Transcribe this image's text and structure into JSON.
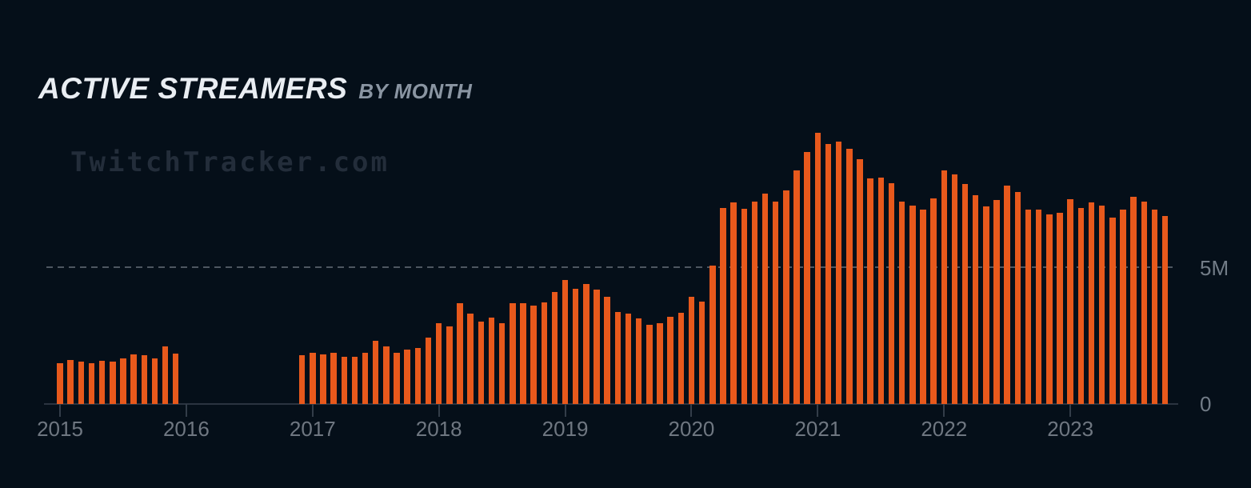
{
  "page": {
    "title": "ACTIVE STREAMERS",
    "subtitle": "BY MONTH",
    "watermark": "TwitchTracker.com",
    "background_color": "#050F19"
  },
  "chart_data": {
    "type": "bar",
    "title": "ACTIVE STREAMERS",
    "subtitle": "BY MONTH",
    "xlabel": "",
    "ylabel": "",
    "unit": "millions of active streamers per month",
    "bar_color": "#E8591C",
    "ylim_m": [
      0,
      10.5
    ],
    "grid": "single horizontal dashed gridline at 5M",
    "legend": "none",
    "data_gap": "no bars from 2016-01 through 2016-11",
    "y_ticks": [
      {
        "label": "5M",
        "value_m": 5
      },
      {
        "label": "0",
        "value_m": 0
      }
    ],
    "x_ticks": [
      "2015",
      "2016",
      "2017",
      "2018",
      "2019",
      "2020",
      "2021",
      "2022",
      "2023"
    ],
    "points": [
      {
        "d": "2015-01",
        "v": 1.51
      },
      {
        "d": "2015-02",
        "v": 1.63
      },
      {
        "d": "2015-03",
        "v": 1.57
      },
      {
        "d": "2015-04",
        "v": 1.5
      },
      {
        "d": "2015-05",
        "v": 1.6
      },
      {
        "d": "2015-06",
        "v": 1.57
      },
      {
        "d": "2015-07",
        "v": 1.69
      },
      {
        "d": "2015-08",
        "v": 1.81
      },
      {
        "d": "2015-09",
        "v": 1.8
      },
      {
        "d": "2015-10",
        "v": 1.69
      },
      {
        "d": "2015-11",
        "v": 2.11
      },
      {
        "d": "2015-12",
        "v": 1.86
      },
      {
        "d": "2016-12",
        "v": 1.8
      },
      {
        "d": "2017-01",
        "v": 1.87
      },
      {
        "d": "2017-02",
        "v": 1.81
      },
      {
        "d": "2017-03",
        "v": 1.87
      },
      {
        "d": "2017-04",
        "v": 1.74
      },
      {
        "d": "2017-05",
        "v": 1.74
      },
      {
        "d": "2017-06",
        "v": 1.87
      },
      {
        "d": "2017-07",
        "v": 2.33
      },
      {
        "d": "2017-08",
        "v": 2.11
      },
      {
        "d": "2017-09",
        "v": 1.87
      },
      {
        "d": "2017-10",
        "v": 1.99
      },
      {
        "d": "2017-11",
        "v": 2.05
      },
      {
        "d": "2017-12",
        "v": 2.45
      },
      {
        "d": "2018-01",
        "v": 2.97
      },
      {
        "d": "2018-02",
        "v": 2.86
      },
      {
        "d": "2018-03",
        "v": 3.7
      },
      {
        "d": "2018-04",
        "v": 3.33
      },
      {
        "d": "2018-05",
        "v": 3.04
      },
      {
        "d": "2018-06",
        "v": 3.17
      },
      {
        "d": "2018-07",
        "v": 2.98
      },
      {
        "d": "2018-08",
        "v": 3.7
      },
      {
        "d": "2018-09",
        "v": 3.71
      },
      {
        "d": "2018-10",
        "v": 3.63
      },
      {
        "d": "2018-11",
        "v": 3.74
      },
      {
        "d": "2018-12",
        "v": 4.12
      },
      {
        "d": "2019-01",
        "v": 4.55
      },
      {
        "d": "2019-02",
        "v": 4.24
      },
      {
        "d": "2019-03",
        "v": 4.42
      },
      {
        "d": "2019-04",
        "v": 4.2
      },
      {
        "d": "2019-05",
        "v": 3.94
      },
      {
        "d": "2019-06",
        "v": 3.38
      },
      {
        "d": "2019-07",
        "v": 3.31
      },
      {
        "d": "2019-08",
        "v": 3.14
      },
      {
        "d": "2019-09",
        "v": 2.91
      },
      {
        "d": "2019-10",
        "v": 2.97
      },
      {
        "d": "2019-11",
        "v": 3.21
      },
      {
        "d": "2019-12",
        "v": 3.35
      },
      {
        "d": "2020-01",
        "v": 3.95
      },
      {
        "d": "2020-02",
        "v": 3.76
      },
      {
        "d": "2020-03",
        "v": 5.1
      },
      {
        "d": "2020-04",
        "v": 7.21
      },
      {
        "d": "2020-05",
        "v": 7.4
      },
      {
        "d": "2020-06",
        "v": 7.17
      },
      {
        "d": "2020-07",
        "v": 7.45
      },
      {
        "d": "2020-08",
        "v": 7.74
      },
      {
        "d": "2020-09",
        "v": 7.45
      },
      {
        "d": "2020-10",
        "v": 7.84
      },
      {
        "d": "2020-11",
        "v": 8.58
      },
      {
        "d": "2020-12",
        "v": 9.26
      },
      {
        "d": "2021-01",
        "v": 9.98
      },
      {
        "d": "2021-02",
        "v": 9.56
      },
      {
        "d": "2021-03",
        "v": 9.65
      },
      {
        "d": "2021-04",
        "v": 9.37
      },
      {
        "d": "2021-05",
        "v": 9.01
      },
      {
        "d": "2021-06",
        "v": 8.28
      },
      {
        "d": "2021-07",
        "v": 8.33
      },
      {
        "d": "2021-08",
        "v": 8.11
      },
      {
        "d": "2021-09",
        "v": 7.45
      },
      {
        "d": "2021-10",
        "v": 7.29
      },
      {
        "d": "2021-11",
        "v": 7.14
      },
      {
        "d": "2021-12",
        "v": 7.57
      },
      {
        "d": "2022-01",
        "v": 8.58
      },
      {
        "d": "2022-02",
        "v": 8.43
      },
      {
        "d": "2022-03",
        "v": 8.09
      },
      {
        "d": "2022-04",
        "v": 7.68
      },
      {
        "d": "2022-05",
        "v": 7.27
      },
      {
        "d": "2022-06",
        "v": 7.5
      },
      {
        "d": "2022-07",
        "v": 8.03
      },
      {
        "d": "2022-08",
        "v": 7.79
      },
      {
        "d": "2022-09",
        "v": 7.16
      },
      {
        "d": "2022-10",
        "v": 7.16
      },
      {
        "d": "2022-11",
        "v": 6.96
      },
      {
        "d": "2022-12",
        "v": 7.04
      },
      {
        "d": "2023-01",
        "v": 7.53
      },
      {
        "d": "2023-02",
        "v": 7.21
      },
      {
        "d": "2023-03",
        "v": 7.4
      },
      {
        "d": "2023-04",
        "v": 7.29
      },
      {
        "d": "2023-05",
        "v": 6.86
      },
      {
        "d": "2023-06",
        "v": 7.14
      },
      {
        "d": "2023-07",
        "v": 7.62
      },
      {
        "d": "2023-08",
        "v": 7.44
      },
      {
        "d": "2023-09",
        "v": 7.15
      },
      {
        "d": "2023-10",
        "v": 6.91
      }
    ]
  }
}
